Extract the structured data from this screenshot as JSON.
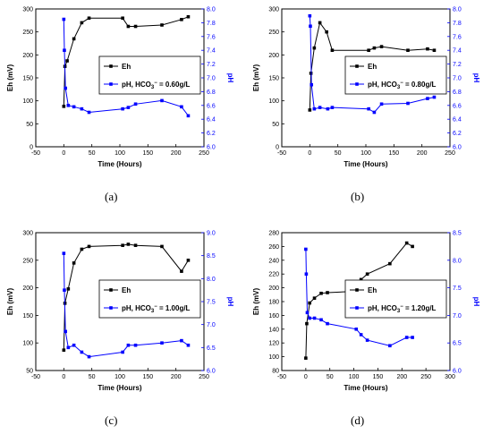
{
  "chart_data": [
    {
      "caption": "(a)",
      "type": "line",
      "xlabel": "Time (Hours)",
      "ylabel": "Eh (mV)",
      "ylabel_right": "pH",
      "xlim": [
        -50,
        250
      ],
      "ylim": [
        0,
        300
      ],
      "ylim_right": [
        6.0,
        8.0
      ],
      "x_ticks": [
        -50,
        0,
        50,
        100,
        150,
        200,
        250
      ],
      "y_ticks": [
        0,
        50,
        100,
        150,
        200,
        250,
        300
      ],
      "y_ticks_right": [
        6.0,
        6.2,
        6.4,
        6.6,
        6.8,
        7.0,
        7.2,
        7.4,
        7.6,
        7.8,
        8.0
      ],
      "legend_position": "center-right",
      "series": [
        {
          "name": "Eh",
          "axis": "left",
          "color": "#000000",
          "marker": "square",
          "x": [
            0,
            2,
            6,
            18,
            32,
            45,
            105,
            115,
            128,
            175,
            210,
            222
          ],
          "y": [
            88,
            175,
            187,
            235,
            270,
            280,
            280,
            262,
            262,
            265,
            277,
            283
          ]
        },
        {
          "name": "pH, HCO3- = 0.60g/L",
          "formula": {
            "prefix": "pH, HCO",
            "sub": "3",
            "sup": "−",
            "suffix": " = 0.60g/L"
          },
          "axis": "right",
          "color": "#0000ff",
          "marker": "square",
          "x": [
            0,
            1,
            3,
            8,
            18,
            32,
            45,
            105,
            115,
            128,
            175,
            210,
            222
          ],
          "y": [
            7.85,
            7.4,
            6.85,
            6.6,
            6.58,
            6.55,
            6.5,
            6.55,
            6.57,
            6.62,
            6.67,
            6.58,
            6.45
          ]
        }
      ]
    },
    {
      "caption": "(b)",
      "type": "line",
      "xlabel": "Time (Hours)",
      "ylabel": "Eh (mV)",
      "ylabel_right": "pH",
      "xlim": [
        -50,
        250
      ],
      "ylim": [
        0,
        300
      ],
      "ylim_right": [
        6.0,
        8.0
      ],
      "x_ticks": [
        -50,
        0,
        50,
        100,
        150,
        200,
        250
      ],
      "y_ticks": [
        0,
        50,
        100,
        150,
        200,
        250,
        300
      ],
      "y_ticks_right": [
        6.0,
        6.2,
        6.4,
        6.6,
        6.8,
        7.0,
        7.2,
        7.4,
        7.6,
        7.8,
        8.0
      ],
      "legend_position": "center-right",
      "series": [
        {
          "name": "Eh",
          "axis": "left",
          "color": "#000000",
          "marker": "square",
          "x": [
            0,
            2,
            8,
            18,
            30,
            40,
            105,
            115,
            128,
            175,
            210,
            222
          ],
          "y": [
            80,
            160,
            215,
            270,
            250,
            210,
            210,
            215,
            218,
            210,
            213,
            210
          ]
        },
        {
          "name": "pH, HCO3- = 0.80g/L",
          "formula": {
            "prefix": "pH, HCO",
            "sub": "3",
            "sup": "−",
            "suffix": " = 0.80g/L"
          },
          "axis": "right",
          "color": "#0000ff",
          "marker": "square",
          "x": [
            0,
            1,
            3,
            8,
            18,
            32,
            40,
            105,
            115,
            128,
            175,
            210,
            222
          ],
          "y": [
            7.9,
            7.75,
            6.9,
            6.55,
            6.57,
            6.55,
            6.57,
            6.55,
            6.5,
            6.62,
            6.63,
            6.7,
            6.72
          ]
        }
      ]
    },
    {
      "caption": "(c)",
      "type": "line",
      "xlabel": "Time (Hours)",
      "ylabel": "Eh (mV)",
      "ylabel_right": "pH",
      "xlim": [
        -50,
        250
      ],
      "ylim": [
        50,
        300
      ],
      "ylim_right": [
        6.0,
        9.0
      ],
      "x_ticks": [
        -50,
        0,
        50,
        100,
        150,
        200,
        250
      ],
      "y_ticks": [
        50,
        100,
        150,
        200,
        250,
        300
      ],
      "y_ticks_right": [
        6.0,
        6.5,
        7.0,
        7.5,
        8.0,
        8.5,
        9.0
      ],
      "legend_position": "center-right",
      "series": [
        {
          "name": "Eh",
          "axis": "left",
          "color": "#000000",
          "marker": "square",
          "x": [
            0,
            2,
            8,
            18,
            32,
            45,
            105,
            115,
            128,
            175,
            210,
            222
          ],
          "y": [
            87,
            172,
            198,
            245,
            270,
            275,
            277,
            279,
            277,
            275,
            230,
            250
          ]
        },
        {
          "name": "pH, HCO3- = 1.00g/L",
          "formula": {
            "prefix": "pH, HCO",
            "sub": "3",
            "sup": "−",
            "suffix": " = 1.00g/L"
          },
          "axis": "right",
          "color": "#0000ff",
          "marker": "square",
          "x": [
            0,
            1,
            3,
            8,
            18,
            32,
            45,
            105,
            115,
            128,
            175,
            210,
            222
          ],
          "y": [
            8.55,
            7.75,
            6.85,
            6.5,
            6.55,
            6.4,
            6.3,
            6.4,
            6.55,
            6.55,
            6.6,
            6.65,
            6.55
          ]
        }
      ]
    },
    {
      "caption": "(d)",
      "type": "line",
      "xlabel": "Time (Hours)",
      "ylabel": "Eh (mV)",
      "ylabel_right": "pH",
      "xlim": [
        -50,
        300
      ],
      "ylim": [
        80,
        280
      ],
      "ylim_right": [
        6.0,
        8.5
      ],
      "x_ticks": [
        -50,
        0,
        50,
        100,
        150,
        200,
        250,
        300
      ],
      "y_ticks": [
        80,
        100,
        120,
        140,
        160,
        180,
        200,
        220,
        240,
        260,
        280
      ],
      "y_ticks_right": [
        6.0,
        6.5,
        7.0,
        7.5,
        8.0,
        8.5
      ],
      "legend_position": "center-right",
      "series": [
        {
          "name": "Eh",
          "axis": "left",
          "color": "#000000",
          "marker": "square",
          "x": [
            0,
            2,
            8,
            18,
            32,
            45,
            105,
            115,
            128,
            175,
            210,
            222
          ],
          "y": [
            98,
            148,
            178,
            185,
            192,
            193,
            195,
            212,
            220,
            235,
            265,
            260
          ]
        },
        {
          "name": "pH, HCO3- = 1.20g/L",
          "formula": {
            "prefix": "pH, HCO",
            "sub": "3",
            "sup": "−",
            "suffix": " = 1.20g/L"
          },
          "axis": "right",
          "color": "#0000ff",
          "marker": "square",
          "x": [
            0,
            1,
            3,
            8,
            18,
            32,
            45,
            105,
            115,
            128,
            175,
            210,
            222
          ],
          "y": [
            8.2,
            7.75,
            7.05,
            6.95,
            6.95,
            6.92,
            6.85,
            6.75,
            6.65,
            6.55,
            6.45,
            6.6,
            6.6
          ]
        }
      ]
    }
  ]
}
